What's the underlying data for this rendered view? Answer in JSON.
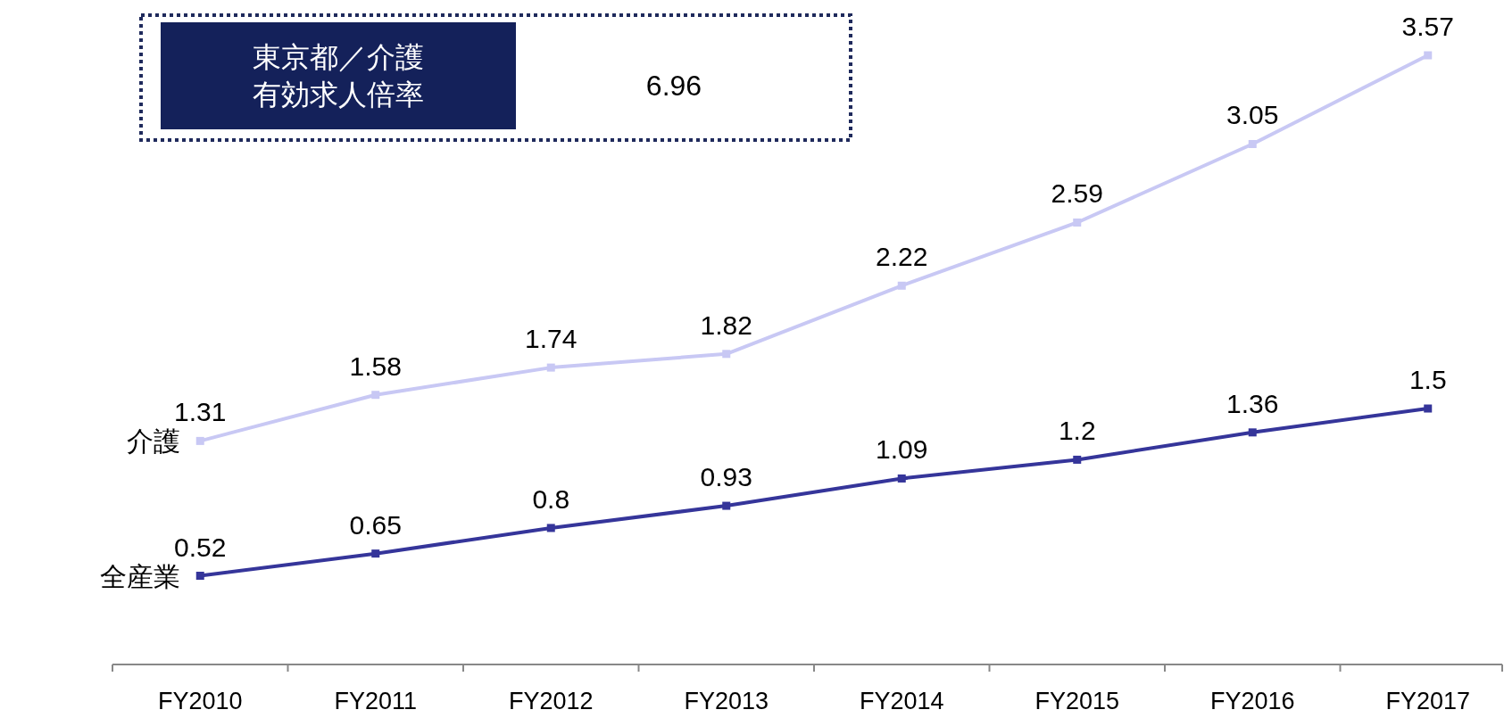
{
  "chart_data": {
    "type": "line",
    "categories": [
      "FY2010",
      "FY2011",
      "FY2012",
      "FY2013",
      "FY2014",
      "FY2015",
      "FY2016",
      "FY2017"
    ],
    "series": [
      {
        "name": "介護",
        "color": "#c8c8f4",
        "values": [
          1.31,
          1.58,
          1.74,
          1.82,
          2.22,
          2.59,
          3.05,
          3.57
        ]
      },
      {
        "name": "全産業",
        "color": "#35359a",
        "values": [
          0.52,
          0.65,
          0.8,
          0.93,
          1.09,
          1.2,
          1.36,
          1.5
        ]
      }
    ],
    "data_labels": true,
    "marker": "square",
    "line_style": "solid",
    "annotations": [
      "東京都／介護",
      "有効求人倍率",
      "6.96"
    ]
  }
}
